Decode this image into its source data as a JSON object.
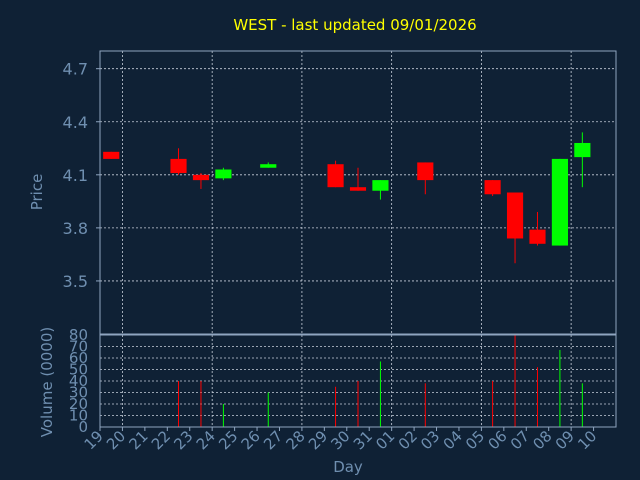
{
  "chart_data": {
    "type": "candlestick",
    "title": "WEST - last updated 09/01/2026",
    "xlabel": "Day",
    "ylabel": "Price",
    "volume_label": "Volume (0000)",
    "price_ylim": [
      3.2,
      4.8
    ],
    "price_ticks": [
      "3.5",
      "3.8",
      "4.1",
      "4.4",
      "4.7"
    ],
    "volume_ylim": [
      0,
      80
    ],
    "volume_ticks": [
      "0",
      "10",
      "20",
      "30",
      "40",
      "50",
      "60",
      "70",
      "80"
    ],
    "x_ticks": [
      "19",
      "20",
      "21",
      "22",
      "23",
      "24",
      "25",
      "26",
      "27",
      "28",
      "29",
      "30",
      "31",
      "01",
      "02",
      "03",
      "04",
      "05",
      "06",
      "07",
      "08",
      "09",
      "10"
    ],
    "grid": true,
    "colors": {
      "background": "#0f2135",
      "axis": "#8fa5c0",
      "grid": "#c8d0dc",
      "title": "#ffff00",
      "label": "#6f8fb0",
      "up": "#00ff00",
      "down": "#ff0000"
    },
    "candles": [
      {
        "day": "19",
        "open": 4.23,
        "high": 4.23,
        "low": 4.19,
        "close": 4.19,
        "volume": 0
      },
      {
        "day": "22",
        "open": 4.19,
        "high": 4.25,
        "low": 4.1,
        "close": 4.11,
        "volume": 40
      },
      {
        "day": "23",
        "open": 4.1,
        "high": 4.11,
        "low": 4.02,
        "close": 4.07,
        "volume": 40
      },
      {
        "day": "24",
        "open": 4.08,
        "high": 4.14,
        "low": 4.07,
        "close": 4.13,
        "volume": 20
      },
      {
        "day": "26",
        "open": 4.14,
        "high": 4.17,
        "low": 4.14,
        "close": 4.16,
        "volume": 30
      },
      {
        "day": "29",
        "open": 4.16,
        "high": 4.18,
        "low": 4.03,
        "close": 4.03,
        "volume": 35
      },
      {
        "day": "30",
        "open": 4.03,
        "high": 4.14,
        "low": 4.01,
        "close": 4.01,
        "volume": 40
      },
      {
        "day": "31",
        "open": 4.01,
        "high": 4.07,
        "low": 3.96,
        "close": 4.07,
        "volume": 57
      },
      {
        "day": "02",
        "open": 4.17,
        "high": 4.17,
        "low": 3.99,
        "close": 4.07,
        "volume": 38
      },
      {
        "day": "05",
        "open": 4.07,
        "high": 4.07,
        "low": 3.98,
        "close": 3.99,
        "volume": 40
      },
      {
        "day": "06",
        "open": 4.0,
        "high": 4.0,
        "low": 3.6,
        "close": 3.74,
        "volume": 80
      },
      {
        "day": "07",
        "open": 3.79,
        "high": 3.89,
        "low": 3.7,
        "close": 3.71,
        "volume": 52
      },
      {
        "day": "08",
        "open": 3.7,
        "high": 4.19,
        "low": 3.7,
        "close": 4.19,
        "volume": 67
      },
      {
        "day": "09",
        "open": 4.2,
        "high": 4.34,
        "low": 4.03,
        "close": 4.28,
        "volume": 38
      }
    ]
  }
}
